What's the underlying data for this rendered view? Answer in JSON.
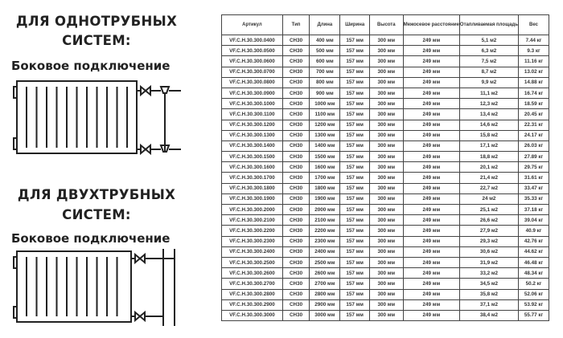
{
  "left": {
    "one_pipe": {
      "title_line1": "ДЛЯ ОДНОТРУБНЫХ",
      "title_line2": "СИСТЕМ:",
      "subtitle": "Боковое подключение"
    },
    "two_pipe": {
      "title_line1": "ДЛЯ ДВУХТРУБНЫХ",
      "title_line2": "СИСТЕМ:",
      "subtitle": "Боковое подключение"
    }
  },
  "table": {
    "headers": [
      "Артикул",
      "Тип",
      "Длина",
      "Ширина",
      "Высота",
      "Межосевое расстояние",
      "Отапливаемая площадь",
      "Вес"
    ],
    "rows": [
      [
        "VF.C.H.30.300.0400",
        "CH30",
        "400 мм",
        "157 мм",
        "300 мм",
        "249 мм",
        "5,1 м2",
        "7.44 кг"
      ],
      [
        "VF.C.H.30.300.0500",
        "CH30",
        "500 мм",
        "157 мм",
        "300 мм",
        "249 мм",
        "6,3 м2",
        "9.3 кг"
      ],
      [
        "VF.C.H.30.300.0600",
        "CH30",
        "600 мм",
        "157 мм",
        "300 мм",
        "249 мм",
        "7,5 м2",
        "11.16 кг"
      ],
      [
        "VF.C.H.30.300.0700",
        "CH30",
        "700 мм",
        "157 мм",
        "300 мм",
        "249 мм",
        "8,7 м2",
        "13.02 кг"
      ],
      [
        "VF.C.H.30.300.0800",
        "CH30",
        "800 мм",
        "157 мм",
        "300 мм",
        "249 мм",
        "9,9 м2",
        "14.88 кг"
      ],
      [
        "VF.C.H.30.300.0900",
        "CH30",
        "900 мм",
        "157 мм",
        "300 мм",
        "249 мм",
        "11,1 м2",
        "16.74 кг"
      ],
      [
        "VF.C.H.30.300.1000",
        "CH30",
        "1000 мм",
        "157 мм",
        "300 мм",
        "249 мм",
        "12,3 м2",
        "18.59 кг"
      ],
      [
        "VF.C.H.30.300.1100",
        "CH30",
        "1100 мм",
        "157 мм",
        "300 мм",
        "249 мм",
        "13,4 м2",
        "20.45 кг"
      ],
      [
        "VF.C.H.30.300.1200",
        "CH30",
        "1200 мм",
        "157 мм",
        "300 мм",
        "249 мм",
        "14,6 м2",
        "22.31 кг"
      ],
      [
        "VF.C.H.30.300.1300",
        "CH30",
        "1300 мм",
        "157 мм",
        "300 мм",
        "249 мм",
        "15,8 м2",
        "24.17 кг"
      ],
      [
        "VF.C.H.30.300.1400",
        "CH30",
        "1400 мм",
        "157 мм",
        "300 мм",
        "249 мм",
        "17,1 м2",
        "26.03 кг"
      ],
      [
        "VF.C.H.30.300.1500",
        "CH30",
        "1500 мм",
        "157 мм",
        "300 мм",
        "249 мм",
        "18,8 м2",
        "27.89 кг"
      ],
      [
        "VF.C.H.30.300.1600",
        "CH30",
        "1600 мм",
        "157 мм",
        "300 мм",
        "249 мм",
        "20,1 м2",
        "29.75 кг"
      ],
      [
        "VF.C.H.30.300.1700",
        "CH30",
        "1700 мм",
        "157 мм",
        "300 мм",
        "249 мм",
        "21,4 м2",
        "31.61 кг"
      ],
      [
        "VF.C.H.30.300.1800",
        "CH30",
        "1800 мм",
        "157 мм",
        "300 мм",
        "249 мм",
        "22,7 м2",
        "33.47 кг"
      ],
      [
        "VF.C.H.30.300.1900",
        "CH30",
        "1900 мм",
        "157 мм",
        "300 мм",
        "249 мм",
        "24 м2",
        "35.33 кг"
      ],
      [
        "VF.C.H.30.300.2000",
        "CH30",
        "2000 мм",
        "157 мм",
        "300 мм",
        "249 мм",
        "25,1 м2",
        "37.18 кг"
      ],
      [
        "VF.C.H.30.300.2100",
        "CH30",
        "2100 мм",
        "157 мм",
        "300 мм",
        "249 мм",
        "26,6 м2",
        "39.04 кг"
      ],
      [
        "VF.C.H.30.300.2200",
        "CH30",
        "2200 мм",
        "157 мм",
        "300 мм",
        "249 мм",
        "27,9 м2",
        "40.9 кг"
      ],
      [
        "VF.C.H.30.300.2300",
        "CH30",
        "2300 мм",
        "157 мм",
        "300 мм",
        "249 мм",
        "29,3 м2",
        "42.76 кг"
      ],
      [
        "VF.C.H.30.300.2400",
        "CH30",
        "2400 мм",
        "157 мм",
        "300 мм",
        "249 мм",
        "30,6 м2",
        "44.62 кг"
      ],
      [
        "VF.C.H.30.300.2500",
        "CH30",
        "2500 мм",
        "157 мм",
        "300 мм",
        "249 мм",
        "31,9 м2",
        "46.48 кг"
      ],
      [
        "VF.C.H.30.300.2600",
        "CH30",
        "2600 мм",
        "157 мм",
        "300 мм",
        "249 мм",
        "33,2 м2",
        "48.34 кг"
      ],
      [
        "VF.C.H.30.300.2700",
        "CH30",
        "2700 мм",
        "157 мм",
        "300 мм",
        "249 мм",
        "34,5 м2",
        "50.2 кг"
      ],
      [
        "VF.C.H.30.300.2800",
        "CH30",
        "2800 мм",
        "157 мм",
        "300 мм",
        "249 мм",
        "35,8 м2",
        "52.06 кг"
      ],
      [
        "VF.C.H.30.300.2900",
        "CH30",
        "2900 мм",
        "157 мм",
        "300 мм",
        "249 мм",
        "37,1 м2",
        "53.92 кг"
      ],
      [
        "VF.C.H.30.300.3000",
        "CH30",
        "3000 мм",
        "157 мм",
        "300 мм",
        "249 мм",
        "38,4 м2",
        "55.77 кг"
      ]
    ]
  }
}
